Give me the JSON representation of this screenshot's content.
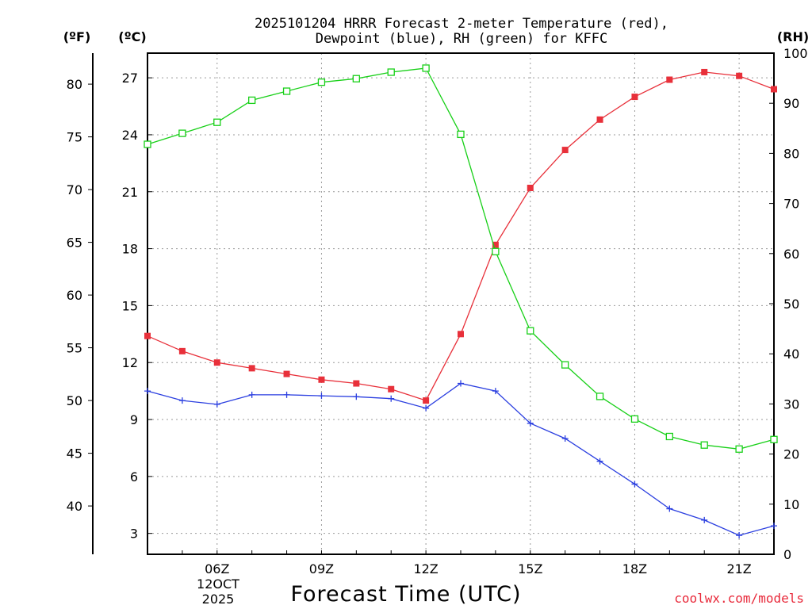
{
  "title_line1": "2025101204 HRRR Forecast 2-meter Temperature (red),",
  "title_line2": "Dewpoint (blue), RH (green) for KFFC",
  "units": {
    "f": "(ºF)",
    "c": "(ºC)",
    "rh": "(RH)"
  },
  "xlabel": "Forecast Time (UTC)",
  "date_label": {
    "line1": "12OCT",
    "line2": "2025"
  },
  "credit": "coolwx.com/models",
  "colors": {
    "temperature": "#e8303a",
    "dewpoint": "#2b3fe0",
    "rh": "#18d018",
    "grid": "#9a9a9a",
    "credit": "#e8293a"
  },
  "chart_data": {
    "type": "line",
    "x_hours": [
      4,
      5,
      6,
      7,
      8,
      9,
      10,
      11,
      12,
      13,
      14,
      15,
      16,
      17,
      18,
      19,
      20,
      21,
      22
    ],
    "xlim": [
      4,
      22
    ],
    "x_ticks": [
      {
        "hour": 6,
        "label": "06Z"
      },
      {
        "hour": 9,
        "label": "09Z"
      },
      {
        "hour": 12,
        "label": "12Z"
      },
      {
        "hour": 15,
        "label": "15Z"
      },
      {
        "hour": 18,
        "label": "18Z"
      },
      {
        "hour": 21,
        "label": "21Z"
      }
    ],
    "left_axis_c": {
      "label": "(ºC)",
      "ticks": [
        3,
        6,
        9,
        12,
        15,
        18,
        21,
        24,
        27
      ],
      "range": [
        1.9,
        28.3
      ]
    },
    "left_axis_f": {
      "label": "(ºF)",
      "ticks": [
        40,
        45,
        50,
        55,
        60,
        65,
        70,
        75,
        80
      ]
    },
    "right_axis_rh": {
      "label": "(RH)",
      "ticks": [
        0,
        10,
        20,
        30,
        40,
        50,
        60,
        70,
        80,
        90,
        100
      ],
      "range": [
        0,
        100
      ]
    },
    "series": [
      {
        "name": "Temperature",
        "unit": "C",
        "color": "#e8303a",
        "marker": "filled-square",
        "values": [
          13.4,
          12.6,
          12.0,
          11.7,
          11.4,
          11.1,
          10.9,
          10.6,
          10.0,
          13.5,
          18.2,
          21.2,
          23.2,
          24.8,
          26.0,
          26.9,
          27.3,
          27.1,
          26.4
        ]
      },
      {
        "name": "Dewpoint",
        "unit": "C",
        "color": "#2b3fe0",
        "marker": "plus",
        "values": [
          10.5,
          10.0,
          9.8,
          10.3,
          10.3,
          10.25,
          10.2,
          10.1,
          9.6,
          10.9,
          10.5,
          8.8,
          8.0,
          6.8,
          5.6,
          4.3,
          3.7,
          2.9,
          3.4
        ]
      },
      {
        "name": "RH",
        "unit": "%",
        "color": "#18d018",
        "marker": "open-square",
        "values": [
          81.8,
          84.0,
          86.2,
          90.6,
          92.4,
          94.2,
          94.9,
          96.2,
          97.0,
          83.8,
          60.4,
          44.6,
          37.8,
          31.5,
          27.0,
          23.5,
          21.8,
          21.0,
          22.9
        ]
      }
    ]
  }
}
